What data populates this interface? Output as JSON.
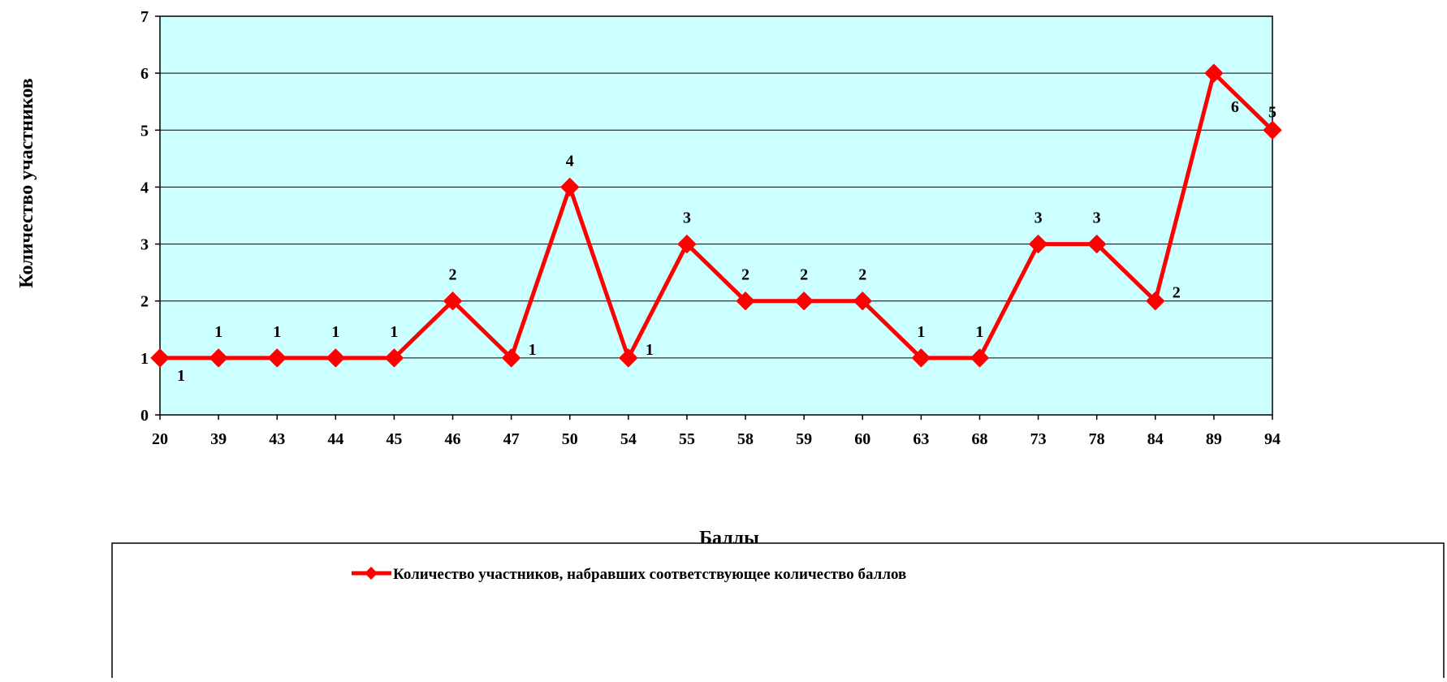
{
  "chart_data": {
    "type": "line",
    "title": "",
    "xlabel": "Баллы",
    "ylabel": "Количество участников",
    "categories": [
      "20",
      "39",
      "43",
      "44",
      "45",
      "46",
      "47",
      "50",
      "54",
      "55",
      "58",
      "59",
      "60",
      "63",
      "68",
      "73",
      "78",
      "84",
      "89",
      "94"
    ],
    "series": [
      {
        "name": "Количество участников, набравших соответствующее количество баллов",
        "values": [
          1,
          1,
          1,
          1,
          1,
          2,
          1,
          4,
          1,
          3,
          2,
          2,
          2,
          1,
          1,
          3,
          3,
          2,
          6,
          5
        ],
        "color": "#ff0000",
        "marker": "diamond"
      }
    ],
    "ylim": [
      0,
      7
    ],
    "yticks": [
      "0",
      "1",
      "2",
      "3",
      "4",
      "5",
      "6",
      "7"
    ],
    "grid": true,
    "plot_background": "#ccffff",
    "legend_position": "bottom"
  }
}
